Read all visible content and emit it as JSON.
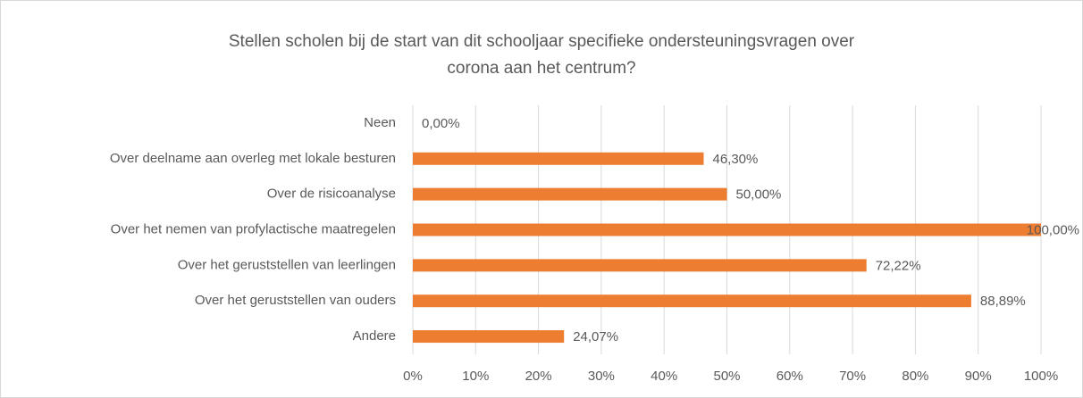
{
  "chart_data": {
    "type": "bar",
    "orientation": "horizontal",
    "title": [
      "Stellen scholen bij de start van dit schooljaar specifieke ondersteuningsvragen over",
      "corona aan het centrum?"
    ],
    "categories": [
      "Neen",
      "Over deelname aan overleg met lokale besturen",
      "Over de risicoanalyse",
      "Over het nemen van profylactische maatregelen",
      "Over het geruststellen van leerlingen",
      "Over het geruststellen van ouders",
      "Andere"
    ],
    "values": [
      0,
      46.3,
      50,
      100,
      72.22,
      88.89,
      24.07
    ],
    "value_labels": [
      "0,00%",
      "46,30%",
      "50,00%",
      "100,00%",
      "72,22%",
      "88,89%",
      "24,07%"
    ],
    "color": "#ed7d31",
    "xlim": [
      0,
      100
    ],
    "xticks": [
      {
        "value": 0,
        "label": "0%"
      },
      {
        "value": 10,
        "label": "10%"
      },
      {
        "value": 20,
        "label": "20%"
      },
      {
        "value": 30,
        "label": "30%"
      },
      {
        "value": 40,
        "label": "40%"
      },
      {
        "value": 50,
        "label": "50%"
      },
      {
        "value": 60,
        "label": "60%"
      },
      {
        "value": 70,
        "label": "70%"
      },
      {
        "value": 80,
        "label": "80%"
      },
      {
        "value": 90,
        "label": "90%"
      },
      {
        "value": 100,
        "label": "100%"
      }
    ],
    "grid": true
  }
}
